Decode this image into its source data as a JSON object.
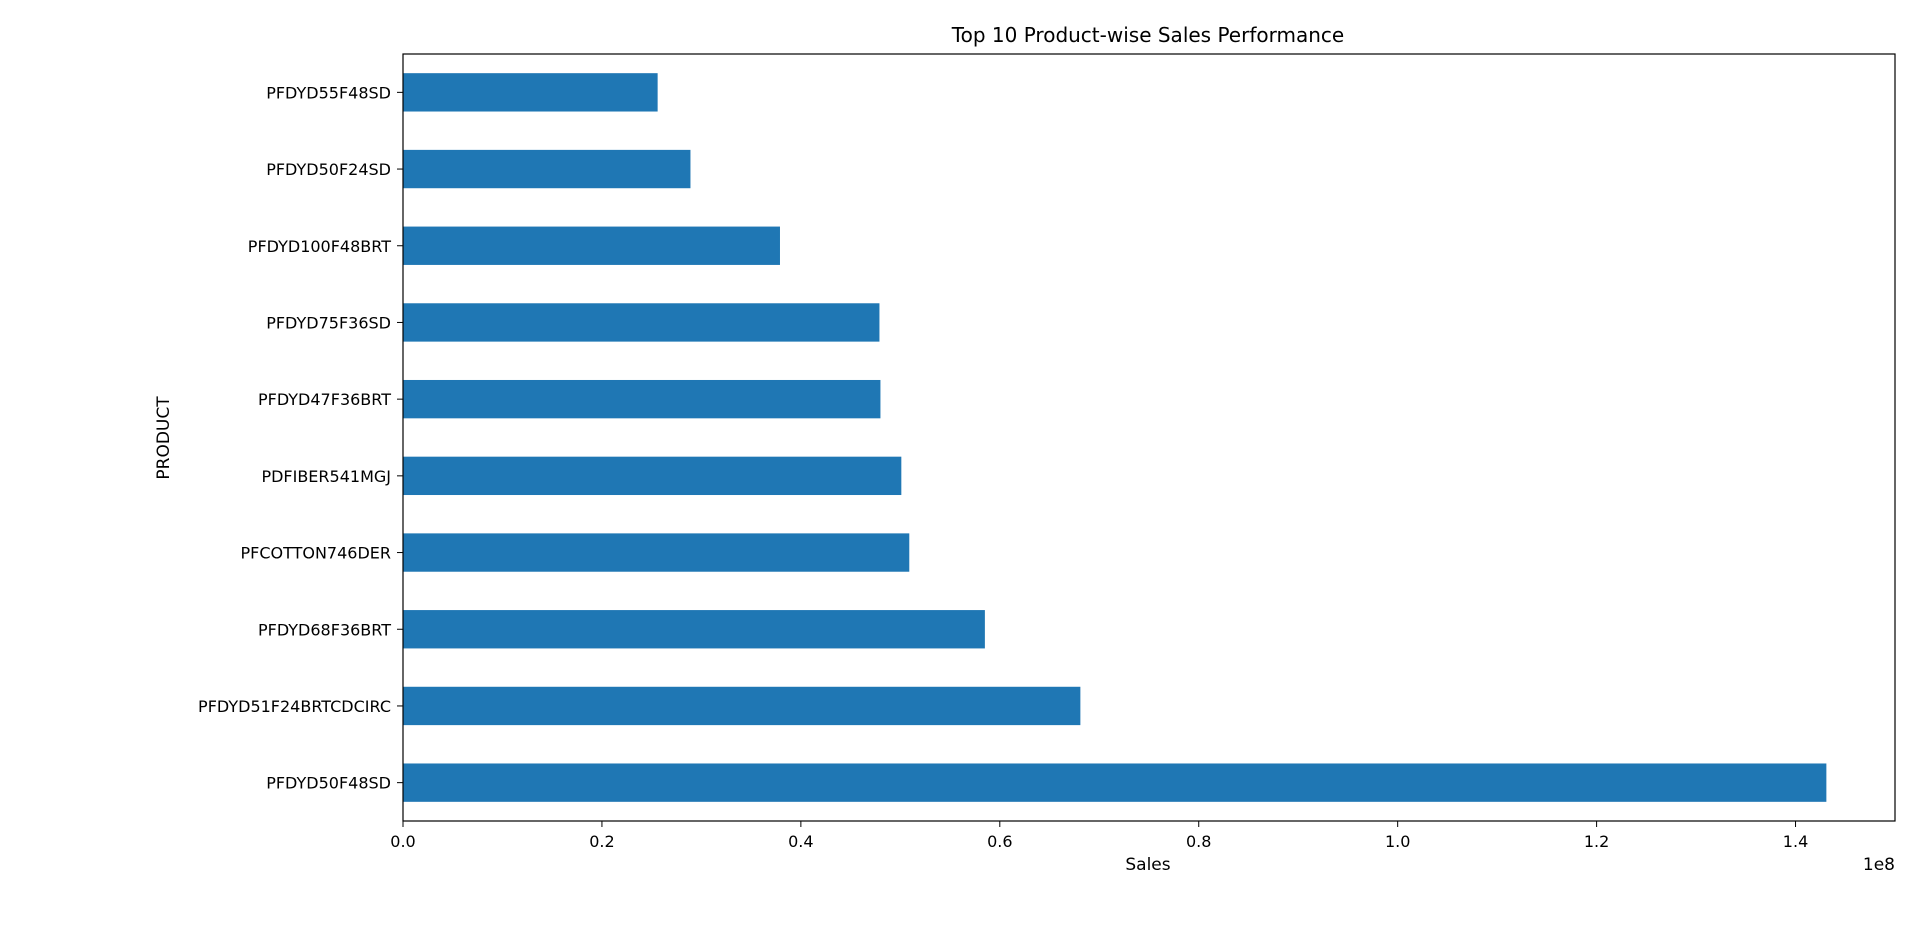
{
  "chart_data": {
    "type": "bar",
    "orientation": "horizontal",
    "title": "Top 10 Product-wise Sales Performance",
    "xlabel": "Sales",
    "ylabel": "PRODUCT",
    "x_offset_label": "1e8",
    "categories": [
      "PFDYD55F48SD",
      "PFDYD50F24SD",
      "PFDYD100F48BRT",
      "PFDYD75F36SD",
      "PFDYD47F36BRT",
      "PDFIBER541MGJ",
      "PFCOTTON746DER",
      "PFDYD68F36BRT",
      "PFDYD51F24BRTCDCIRC",
      "PFDYD50F48SD"
    ],
    "values": [
      25600000,
      28900000,
      37900000,
      47900000,
      48000000,
      50100000,
      50900000,
      58500000,
      68100000,
      143100000
    ],
    "xlim": [
      0,
      150000000
    ],
    "xticks": [
      0,
      20000000,
      40000000,
      60000000,
      80000000,
      100000000,
      120000000,
      140000000
    ],
    "xtick_labels": [
      "0.0",
      "0.2",
      "0.4",
      "0.6",
      "0.8",
      "1.0",
      "1.2",
      "1.4"
    ],
    "grid": false,
    "bar_color": "#1f77b4"
  }
}
